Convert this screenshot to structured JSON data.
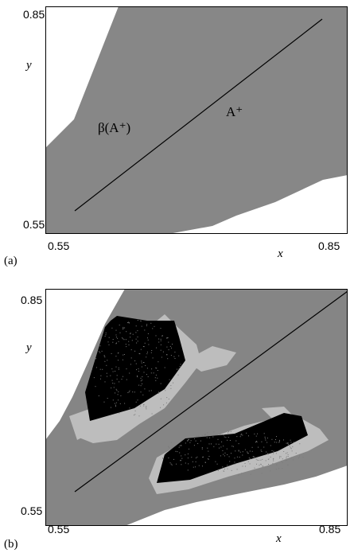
{
  "panels": [
    {
      "id": "a",
      "panel_label": "(a)",
      "x_label": "x",
      "y_label": "y",
      "x_ticks": [
        "0.55",
        "0.85"
      ],
      "y_ticks": [
        "0.55",
        "0.85"
      ],
      "annotations": {
        "basin": "β(A⁺)",
        "attractor": "A⁺"
      },
      "colors": {
        "basin": "#878787",
        "background": "#ffffff",
        "diagonal": "#000000"
      }
    },
    {
      "id": "b",
      "panel_label": "(b)",
      "x_label": "x",
      "y_label": "y",
      "x_ticks": [
        "0.55",
        "0.85"
      ],
      "y_ticks": [
        "0.55",
        "0.85"
      ],
      "colors": {
        "basin": "#858585",
        "halo": "#bdbdbd",
        "attractor": "#000000",
        "background": "#ffffff",
        "diagonal": "#000000"
      }
    }
  ]
}
